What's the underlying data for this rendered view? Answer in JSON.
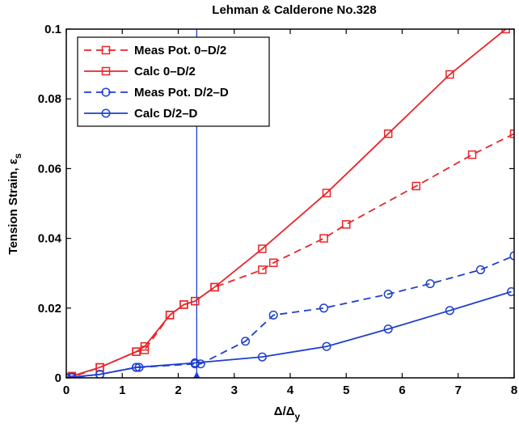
{
  "chart_data": {
    "type": "line",
    "title": "Lehman & Calderone No.328",
    "xlabel_main": "Δ/Δ",
    "xlabel_sub": "y",
    "ylabel_main": "Tension Strain, ε",
    "ylabel_sub": "s",
    "xlim": [
      0,
      8
    ],
    "ylim": [
      0,
      0.1
    ],
    "xticks": [
      0,
      1,
      2,
      3,
      4,
      5,
      6,
      7,
      8
    ],
    "yticks": [
      0,
      0.02,
      0.04,
      0.06,
      0.08,
      0.1
    ],
    "xtick_labels": [
      "0",
      "1",
      "2",
      "3",
      "4",
      "5",
      "6",
      "7",
      "8"
    ],
    "ytick_labels": [
      "0",
      "0.02",
      "0.04",
      "0.06",
      "0.08",
      "0.1"
    ],
    "grid": false,
    "legend_position": "top-left",
    "vertical_line_x": 2.33,
    "vertical_line_color": "#1f3fcf",
    "series": [
      {
        "name": "Meas Pot. 0–D/2",
        "color": "#e8262a",
        "dash": true,
        "marker": "square",
        "x": [
          0,
          0.1,
          0.6,
          1.25,
          1.4,
          1.85,
          2.1,
          2.3,
          2.65,
          3.5,
          3.7,
          4.6,
          5.0,
          6.25,
          7.25,
          8.0
        ],
        "y": [
          0,
          0.0002,
          0.003,
          0.0075,
          0.008,
          0.018,
          0.021,
          0.022,
          0.026,
          0.031,
          0.033,
          0.04,
          0.044,
          0.055,
          0.064,
          0.07
        ]
      },
      {
        "name": "Calc 0–D/2",
        "color": "#e8262a",
        "dash": false,
        "marker": "square",
        "x": [
          0,
          0.1,
          0.6,
          1.25,
          1.4,
          1.85,
          2.1,
          2.3,
          2.65,
          3.5,
          4.65,
          5.75,
          6.85,
          7.85
        ],
        "y": [
          0,
          0.0005,
          0.003,
          0.0075,
          0.009,
          0.018,
          0.021,
          0.022,
          0.026,
          0.037,
          0.053,
          0.07,
          0.087,
          0.1
        ]
      },
      {
        "name": "Meas Pot. D/2–D",
        "color": "#1f3fcf",
        "dash": true,
        "marker": "circle",
        "x": [
          0,
          0.1,
          0.6,
          1.25,
          1.3,
          2.3,
          2.4,
          3.2,
          3.7,
          4.6,
          5.75,
          6.5,
          7.4,
          8.0
        ],
        "y": [
          0,
          0.0001,
          0.001,
          0.003,
          0.003,
          0.004,
          0.004,
          0.0105,
          0.018,
          0.02,
          0.024,
          0.027,
          0.031,
          0.035
        ]
      },
      {
        "name": "Calc D/2–D",
        "color": "#1f3fcf",
        "dash": false,
        "marker": "circle",
        "x": [
          0,
          0.1,
          0.6,
          1.25,
          2.3,
          3.5,
          4.65,
          5.75,
          6.85,
          7.95
        ],
        "y": [
          0,
          0.0002,
          0.001,
          0.003,
          0.0043,
          0.006,
          0.009,
          0.014,
          0.0193,
          0.0247
        ]
      }
    ]
  }
}
